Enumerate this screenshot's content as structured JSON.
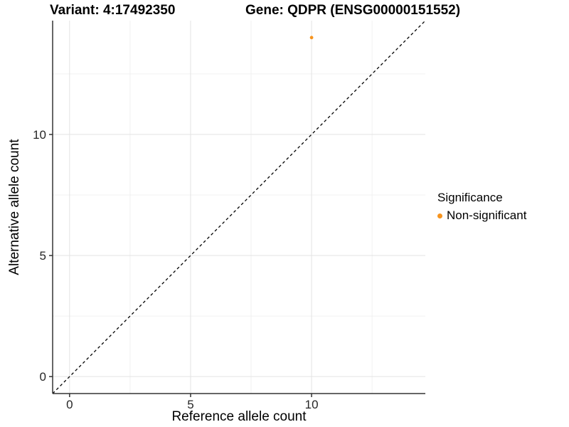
{
  "chart_data": {
    "type": "scatter",
    "title": "Variant: 4:17492350",
    "subtitle": "Gene: QDPR (ENSG00000151552)",
    "xlabel": "Reference allele count",
    "ylabel": "Alternative allele count",
    "xlim": [
      -0.7,
      14.7
    ],
    "ylim": [
      -0.7,
      14.7
    ],
    "xticks": [
      0,
      5,
      10
    ],
    "yticks": [
      0,
      5,
      10
    ],
    "minor_ticks": [
      2.5,
      7.5,
      12.5
    ],
    "grid": true,
    "series": [
      {
        "name": "Non-significant",
        "color": "#F7941E",
        "points": [
          {
            "x": 10,
            "y": 14
          }
        ]
      }
    ],
    "reference_line": {
      "type": "identity",
      "slope": 1,
      "intercept": 0,
      "style": "dashed",
      "color": "#000000"
    },
    "legend": {
      "title": "Significance",
      "position": "right",
      "items": [
        {
          "label": "Non-significant",
          "color": "#F7941E",
          "marker": "circle"
        }
      ]
    },
    "colors": {
      "axis_line": "#333333",
      "grid_major": "#E3E3E3",
      "grid_minor": "#F0F0F0",
      "tick_text": "#262626"
    }
  }
}
